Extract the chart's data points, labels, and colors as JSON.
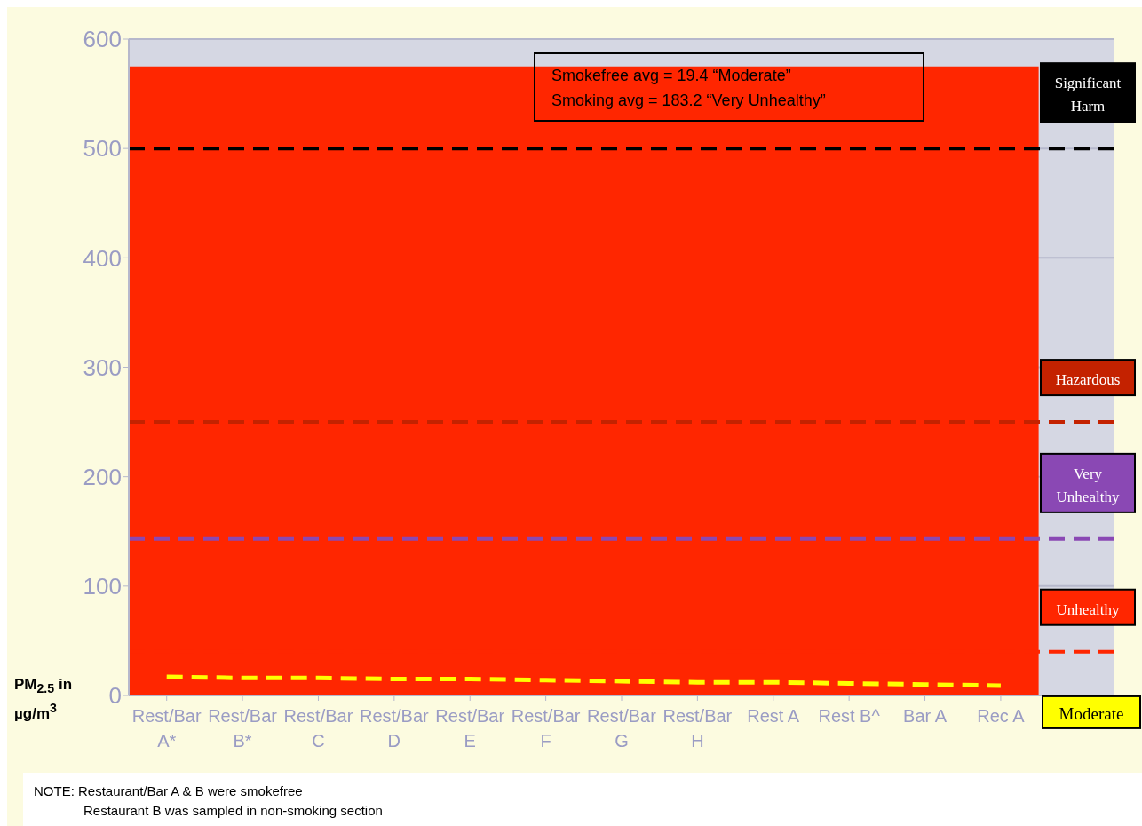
{
  "chart_data": {
    "type": "line",
    "categories": [
      "Rest/Bar A*",
      "Rest/Bar B*",
      "Rest/Bar C",
      "Rest/Bar D",
      "Rest/Bar E",
      "Rest/Bar F",
      "Rest/Bar G",
      "Rest/Bar H",
      "Rest A",
      "Rest B^",
      "Bar A",
      "Rec A",
      null
    ],
    "series": [
      {
        "name": "Moderate",
        "color": "#ffff00",
        "line_style": "dashed",
        "marker": "none",
        "values": [
          17,
          16,
          16,
          15,
          15,
          14,
          13,
          12,
          12,
          11,
          10,
          9,
          null
        ]
      }
    ],
    "ylabel": "PM$_{2.5}$ in µg/m$^{3}$",
    "ylim": [
      0,
      600
    ],
    "yticks": [
      0,
      100,
      200,
      300,
      400,
      500,
      600
    ],
    "grid": "y",
    "legend": false,
    "bands": [
      {
        "axis": "y",
        "from": 0,
        "to": 575,
        "color": "#ff2600"
      }
    ],
    "ref_lines": [
      {
        "axis": "y",
        "value": 500,
        "label": "Significant Harm",
        "color": "#000000",
        "line_style": "dashed"
      },
      {
        "axis": "y",
        "value": 250,
        "label": "Hazardous",
        "color": "#c42200",
        "line_style": "dashed"
      },
      {
        "axis": "y",
        "value": 143,
        "label": "Very Unhealthy",
        "color": "#8a48b4",
        "line_style": "dashed"
      },
      {
        "axis": "y",
        "value": 40,
        "label": "Unhealthy",
        "color": "#ff2600",
        "line_style": "dashed"
      }
    ],
    "annotations": [
      "Smokefree avg = 19.4 “Moderate”",
      "Smoking avg = 183.2 “Very Unhealthy”",
      "NOTE:  Restaurant/Bar A & B were smokefree",
      "Restaurant B was sampled in non-smoking section"
    ]
  }
}
